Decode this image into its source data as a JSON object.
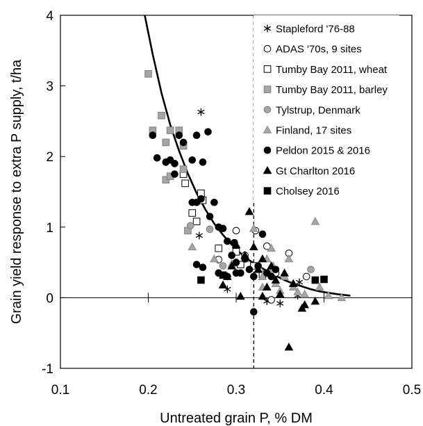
{
  "chart_data": {
    "type": "scatter",
    "xlabel": "Untreated grain P, % DM",
    "ylabel": "Grain yield response to extra P supply, t/ha",
    "xlim": [
      0.1,
      0.5
    ],
    "ylim": [
      -1,
      4
    ],
    "x_ticks": [
      "0.1",
      "0.2",
      "0.3",
      "0.4",
      "0.5"
    ],
    "y_ticks": [
      "-1",
      "0",
      "1",
      "2",
      "3",
      "4"
    ],
    "grid": false,
    "legend_position": "top-right",
    "reference_line_x": 0.32,
    "zero_line_y": 0,
    "fitted_curve": [
      [
        0.196,
        4.0
      ],
      [
        0.205,
        3.45
      ],
      [
        0.215,
        2.9
      ],
      [
        0.225,
        2.45
      ],
      [
        0.235,
        2.08
      ],
      [
        0.245,
        1.76
      ],
      [
        0.255,
        1.48
      ],
      [
        0.265,
        1.25
      ],
      [
        0.275,
        1.05
      ],
      [
        0.285,
        0.89
      ],
      [
        0.295,
        0.75
      ],
      [
        0.305,
        0.63
      ],
      [
        0.315,
        0.53
      ],
      [
        0.325,
        0.45
      ],
      [
        0.335,
        0.38
      ],
      [
        0.345,
        0.31
      ],
      [
        0.355,
        0.25
      ],
      [
        0.365,
        0.2
      ],
      [
        0.375,
        0.16
      ],
      [
        0.385,
        0.12
      ],
      [
        0.395,
        0.09
      ],
      [
        0.405,
        0.07
      ],
      [
        0.415,
        0.05
      ],
      [
        0.43,
        0.03
      ]
    ],
    "series": [
      {
        "name": "Stapleford '76-88",
        "marker": "asterisk",
        "points": [
          [
            0.26,
            2.63
          ],
          [
            0.258,
            0.88
          ],
          [
            0.29,
            0.12
          ],
          [
            0.335,
            -0.05
          ],
          [
            0.35,
            -0.08
          ],
          [
            0.372,
            0.22
          ],
          [
            0.37,
            0.03
          ]
        ]
      },
      {
        "name": "ADAS '70s, 9 sites",
        "marker": "circle-open",
        "points": [
          [
            0.28,
            0.54
          ],
          [
            0.3,
            0.95
          ],
          [
            0.322,
            0.95
          ],
          [
            0.31,
            0.6
          ],
          [
            0.335,
            0.73
          ],
          [
            0.345,
            0.35
          ],
          [
            0.36,
            0.63
          ],
          [
            0.38,
            0.3
          ],
          [
            0.34,
            -0.03
          ]
        ]
      },
      {
        "name": "Tumby Bay 2011, wheat",
        "marker": "square-open",
        "points": [
          [
            0.24,
            1.75
          ],
          [
            0.242,
            1.62
          ],
          [
            0.25,
            1.2
          ],
          [
            0.255,
            1.08
          ],
          [
            0.26,
            1.48
          ],
          [
            0.262,
            1.38
          ],
          [
            0.28,
            0.7
          ],
          [
            0.3,
            0.65
          ],
          [
            0.305,
            0.47
          ],
          [
            0.32,
            0.45
          ],
          [
            0.33,
            0.33
          ]
        ]
      },
      {
        "name": "Tumby Bay 2011, barley",
        "marker": "square-gray",
        "points": [
          [
            0.2,
            3.17
          ],
          [
            0.205,
            2.37
          ],
          [
            0.215,
            2.58
          ],
          [
            0.22,
            2.2
          ],
          [
            0.225,
            2.37
          ],
          [
            0.22,
            1.67
          ],
          [
            0.225,
            1.72
          ],
          [
            0.235,
            2.37
          ],
          [
            0.24,
            2.15
          ],
          [
            0.24,
            1.82
          ],
          [
            0.245,
            0.95
          ]
        ]
      },
      {
        "name": "Tylstrup, Denmark",
        "marker": "circle-gray",
        "points": [
          [
            0.248,
            1.02
          ],
          [
            0.27,
            0.97
          ],
          [
            0.285,
            0.45
          ],
          [
            0.34,
            0.38
          ],
          [
            0.385,
            0.4
          ]
        ]
      },
      {
        "name": "Finland, 17 sites",
        "marker": "triangle-gray",
        "points": [
          [
            0.25,
            0.72
          ],
          [
            0.275,
            0.55
          ],
          [
            0.295,
            0.48
          ],
          [
            0.31,
            0.55
          ],
          [
            0.32,
            0.98
          ],
          [
            0.325,
            0.45
          ],
          [
            0.33,
            0.3
          ],
          [
            0.335,
            0.55
          ],
          [
            0.34,
            0.7
          ],
          [
            0.342,
            0.45
          ],
          [
            0.345,
            0.2
          ],
          [
            0.35,
            0.1
          ],
          [
            0.355,
            0.3
          ],
          [
            0.365,
            0.15
          ],
          [
            0.37,
            0.08
          ],
          [
            0.378,
            0.05
          ],
          [
            0.39,
            1.08
          ],
          [
            0.395,
            0.15
          ],
          [
            0.405,
            0.03
          ],
          [
            0.42,
            0.0
          ],
          [
            0.36,
            0.55
          ],
          [
            0.33,
            0.15
          ]
        ]
      },
      {
        "name": "Peldon 2015 & 2016",
        "marker": "circle-filled",
        "points": [
          [
            0.205,
            2.3
          ],
          [
            0.21,
            1.98
          ],
          [
            0.22,
            1.92
          ],
          [
            0.225,
            1.95
          ],
          [
            0.23,
            1.9
          ],
          [
            0.23,
            1.75
          ],
          [
            0.235,
            2.3
          ],
          [
            0.24,
            2.2
          ],
          [
            0.25,
            1.95
          ],
          [
            0.255,
            2.3
          ],
          [
            0.262,
            1.92
          ],
          [
            0.268,
            2.35
          ],
          [
            0.25,
            1.35
          ],
          [
            0.255,
            1.35
          ],
          [
            0.26,
            1.4
          ],
          [
            0.27,
            1.15
          ],
          [
            0.275,
            1.35
          ],
          [
            0.28,
            1.0
          ],
          [
            0.285,
            0.98
          ],
          [
            0.29,
            0.8
          ],
          [
            0.295,
            0.6
          ],
          [
            0.298,
            0.78
          ],
          [
            0.3,
            0.5
          ],
          [
            0.305,
            0.35
          ],
          [
            0.31,
            0.55
          ],
          [
            0.315,
            0.4
          ],
          [
            0.32,
            0.3
          ],
          [
            0.325,
            0.45
          ],
          [
            0.33,
            0.9
          ],
          [
            0.335,
            0.35
          ],
          [
            0.34,
            0.3
          ],
          [
            0.345,
            0.4
          ],
          [
            0.32,
            -0.2
          ],
          [
            0.255,
            0.47
          ],
          [
            0.262,
            0.43
          ],
          [
            0.28,
            0.35
          ],
          [
            0.29,
            0.3
          ],
          [
            0.3,
            0.35
          ]
        ]
      },
      {
        "name": "Gt Charlton 2016",
        "marker": "triangle-filled",
        "points": [
          [
            0.285,
            0.18
          ],
          [
            0.29,
            0.3
          ],
          [
            0.295,
            0.45
          ],
          [
            0.3,
            0.75
          ],
          [
            0.31,
            0.6
          ],
          [
            0.315,
            1.22
          ],
          [
            0.32,
            0.72
          ],
          [
            0.325,
            0.4
          ],
          [
            0.33,
            0.55
          ],
          [
            0.33,
            0.02
          ],
          [
            0.335,
            0.15
          ],
          [
            0.34,
            0.45
          ],
          [
            0.345,
            0.25
          ],
          [
            0.35,
            0.05
          ],
          [
            0.355,
            0.35
          ],
          [
            0.36,
            -0.7
          ],
          [
            0.365,
            0.2
          ],
          [
            0.375,
            -0.15
          ],
          [
            0.378,
            -0.1
          ],
          [
            0.39,
            -0.05
          ],
          [
            0.305,
            0.02
          ]
        ]
      },
      {
        "name": "Cholsey 2016",
        "marker": "square-filled",
        "points": [
          [
            0.26,
            0.25
          ],
          [
            0.285,
            0.32
          ],
          [
            0.39,
            0.25
          ],
          [
            0.4,
            0.26
          ]
        ]
      }
    ]
  }
}
